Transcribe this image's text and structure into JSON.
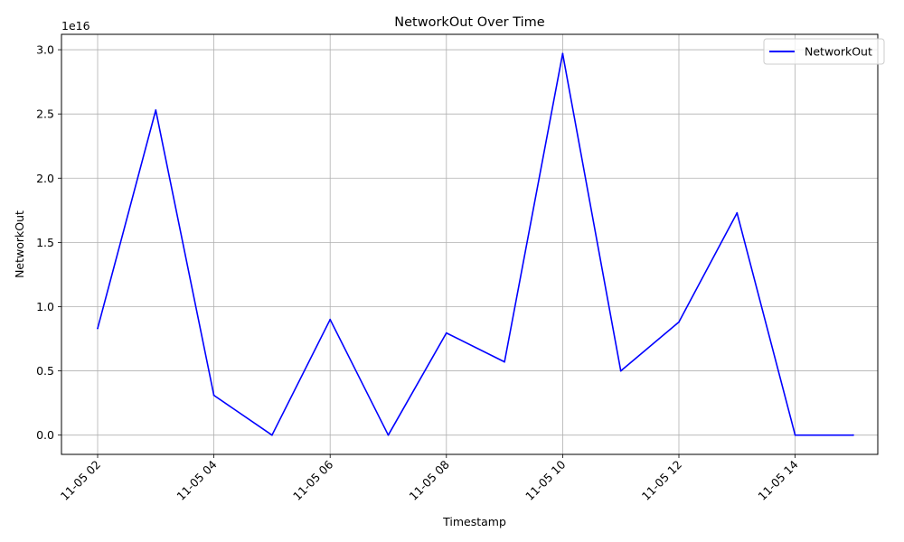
{
  "chart_data": {
    "type": "line",
    "title": "NetworkOut Over Time",
    "xlabel": "Timestamp",
    "ylabel": "NetworkOut",
    "y_offset_label": "1e16",
    "grid": true,
    "legend_position": "top-right",
    "x_tick_labels": [
      "11-05 02",
      "11-05 04",
      "11-05 06",
      "11-05 08",
      "11-05 10",
      "11-05 12",
      "11-05 14"
    ],
    "y_tick_labels": [
      "0.0",
      "0.5",
      "1.0",
      "1.5",
      "2.0",
      "2.5",
      "3.0"
    ],
    "ylim": [
      -1500000000000000.0,
      3.12e+16
    ],
    "series": [
      {
        "name": "NetworkOut",
        "color": "#0000ff",
        "x": [
          "11-05 02:00",
          "11-05 03:00",
          "11-05 04:00",
          "11-05 05:00",
          "11-05 06:00",
          "11-05 07:00",
          "11-05 08:00",
          "11-05 09:00",
          "11-05 10:00",
          "11-05 11:00",
          "11-05 12:00",
          "11-05 13:00",
          "11-05 14:00",
          "11-05 15:00"
        ],
        "values": [
          8300000000000000.0,
          2.53e+16,
          3100000000000000.0,
          0,
          9000000000000000.0,
          0,
          7950000000000000.0,
          5700000000000000.0,
          2.97e+16,
          5000000000000000.0,
          8800000000000000.0,
          1.73e+16,
          0,
          0
        ]
      }
    ]
  }
}
